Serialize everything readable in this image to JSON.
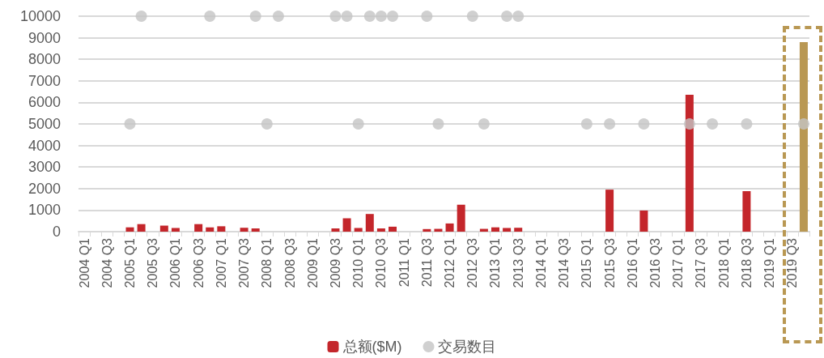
{
  "chart_data": {
    "type": "bar",
    "categories": [
      "2004 Q1",
      null,
      "2004 Q3",
      null,
      "2005 Q1",
      null,
      "2005 Q3",
      null,
      "2006 Q1",
      null,
      "2006 Q3",
      null,
      "2007 Q1",
      null,
      "2007 Q3",
      null,
      "2008 Q1",
      null,
      "2008 Q3",
      null,
      "2009 Q1",
      null,
      "2009 Q3",
      null,
      "2010 Q1",
      null,
      "2010 Q3",
      null,
      "2011 Q1",
      null,
      "2011 Q3",
      null,
      "2012 Q1",
      null,
      "2012 Q3",
      null,
      "2013 Q1",
      null,
      "2013 Q3",
      null,
      "2014 Q1",
      null,
      "2014 Q3",
      null,
      "2015 Q1",
      null,
      "2015 Q3",
      null,
      "2016 Q1",
      null,
      "2016 Q3",
      null,
      "2017 Q1",
      null,
      "2017 Q3",
      null,
      "2018 Q1",
      null,
      "2018 Q3",
      null,
      "2019 Q1",
      null,
      "2019 Q3",
      null
    ],
    "series": [
      {
        "name": "总额($M)",
        "color": "#c4262b",
        "colors": [
          null,
          null,
          null,
          null,
          "#c4262b",
          "#c4262b",
          null,
          "#c4262b",
          "#c4262b",
          null,
          "#c4262b",
          "#c4262b",
          "#c4262b",
          null,
          "#c4262b",
          "#c4262b",
          null,
          null,
          null,
          null,
          null,
          null,
          "#c4262b",
          "#c4262b",
          "#c4262b",
          "#c4262b",
          "#c4262b",
          "#c4262b",
          null,
          null,
          "#c4262b",
          "#c4262b",
          "#c4262b",
          "#c4262b",
          null,
          "#c4262b",
          "#c4262b",
          "#c4262b",
          "#c4262b",
          null,
          null,
          null,
          null,
          null,
          null,
          null,
          "#c4262b",
          null,
          null,
          "#c4262b",
          null,
          null,
          null,
          "#c4262b",
          null,
          null,
          null,
          null,
          "#c4262b",
          null,
          null,
          null,
          null,
          "#b99853"
        ],
        "values": [
          null,
          null,
          null,
          null,
          200,
          350,
          null,
          280,
          170,
          null,
          350,
          200,
          250,
          null,
          180,
          150,
          null,
          null,
          null,
          null,
          null,
          null,
          150,
          620,
          170,
          820,
          150,
          230,
          null,
          null,
          120,
          130,
          380,
          1250,
          null,
          130,
          200,
          170,
          180,
          null,
          null,
          null,
          null,
          null,
          null,
          null,
          1950,
          null,
          null,
          980,
          null,
          null,
          null,
          6350,
          null,
          null,
          null,
          null,
          1880,
          null,
          null,
          null,
          null,
          8800
        ]
      },
      {
        "name": "交易数目",
        "type": "scatter",
        "color": "#c4c4c4",
        "marker": "circle",
        "values": [
          null,
          null,
          null,
          null,
          5000,
          10000,
          null,
          null,
          null,
          null,
          null,
          10000,
          null,
          null,
          null,
          10000,
          5000,
          10000,
          null,
          null,
          null,
          null,
          10000,
          10000,
          5000,
          10000,
          10000,
          10000,
          null,
          null,
          10000,
          5000,
          null,
          null,
          10000,
          5000,
          null,
          10000,
          10000,
          null,
          null,
          null,
          null,
          null,
          5000,
          null,
          5000,
          null,
          null,
          5000,
          null,
          null,
          null,
          5000,
          null,
          5000,
          null,
          null,
          5000,
          null,
          null,
          null,
          null,
          5000
        ]
      }
    ],
    "ylim": [
      0,
      10000
    ],
    "yticks": [
      0,
      1000,
      2000,
      3000,
      4000,
      5000,
      6000,
      7000,
      8000,
      9000,
      10000
    ],
    "grid": "y",
    "legend": "bottom"
  }
}
